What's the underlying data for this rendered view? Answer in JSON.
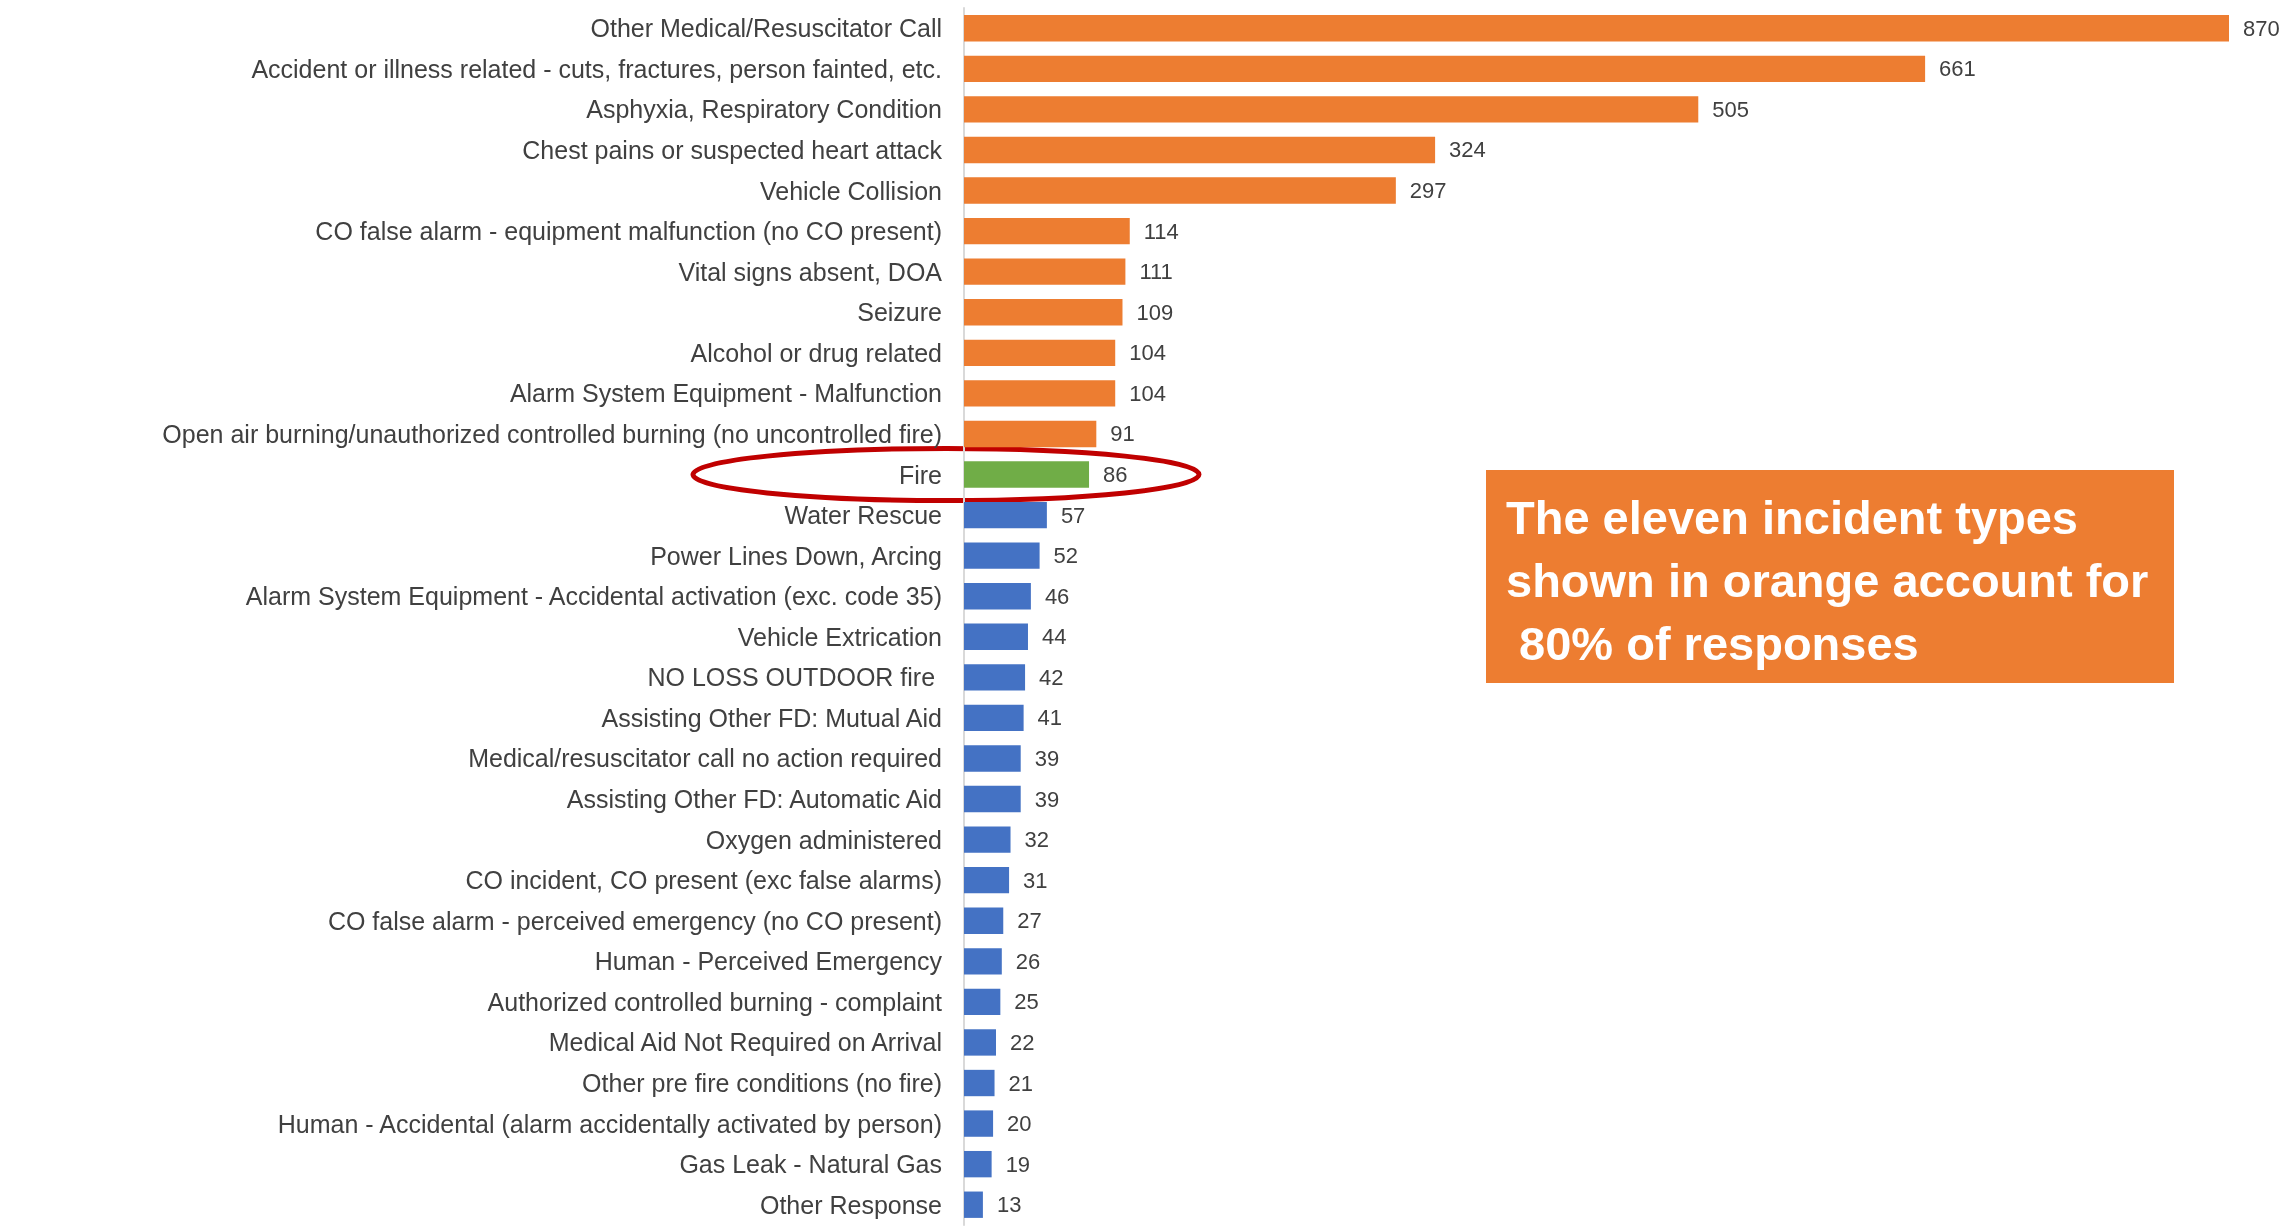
{
  "chart_data": {
    "type": "bar",
    "orientation": "horizontal",
    "data_labels": true,
    "categories": [
      "Other Medical/Resuscitator Call",
      "Accident or illness related - cuts, fractures, person fainted, etc.",
      "Asphyxia, Respiratory Condition",
      "Chest pains or suspected heart attack",
      "Vehicle Collision",
      "CO false alarm - equipment malfunction (no CO present)",
      "Vital signs absent, DOA",
      "Seizure",
      "Alcohol or drug related",
      "Alarm System Equipment - Malfunction",
      "Open air burning/unauthorized controlled burning (no uncontrolled fire)",
      "Fire",
      "Water Rescue",
      "Power Lines Down, Arcing",
      "Alarm System Equipment - Accidental activation (exc. code 35)",
      "Vehicle Extrication",
      "NO LOSS OUTDOOR fire ",
      "Assisting Other FD: Mutual Aid",
      "Medical/resuscitator call no action required",
      "Assisting Other FD: Automatic Aid",
      "Oxygen administered",
      "CO incident, CO present (exc false alarms)",
      "CO false alarm - perceived emergency (no CO present)",
      "Human - Perceived Emergency",
      "Authorized controlled burning - complaint",
      "Medical Aid Not Required on Arrival",
      "Other pre fire conditions (no fire)",
      "Human - Accidental (alarm accidentally activated by person)",
      "Gas Leak - Natural Gas",
      "Other Response"
    ],
    "values": [
      870,
      661,
      505,
      324,
      297,
      114,
      111,
      109,
      104,
      104,
      91,
      86,
      57,
      52,
      46,
      44,
      42,
      41,
      39,
      39,
      32,
      31,
      27,
      26,
      25,
      22,
      21,
      20,
      19,
      13
    ],
    "colors": [
      "#ed7d31",
      "#ed7d31",
      "#ed7d31",
      "#ed7d31",
      "#ed7d31",
      "#ed7d31",
      "#ed7d31",
      "#ed7d31",
      "#ed7d31",
      "#ed7d31",
      "#ed7d31",
      "#70ad47",
      "#4472c4",
      "#4472c4",
      "#4472c4",
      "#4472c4",
      "#4472c4",
      "#4472c4",
      "#4472c4",
      "#4472c4",
      "#4472c4",
      "#4472c4",
      "#4472c4",
      "#4472c4",
      "#4472c4",
      "#4472c4",
      "#4472c4",
      "#4472c4",
      "#4472c4",
      "#4472c4"
    ],
    "annotations": [
      "The eleven incident types shown in orange account for 80% of responses"
    ]
  }
}
